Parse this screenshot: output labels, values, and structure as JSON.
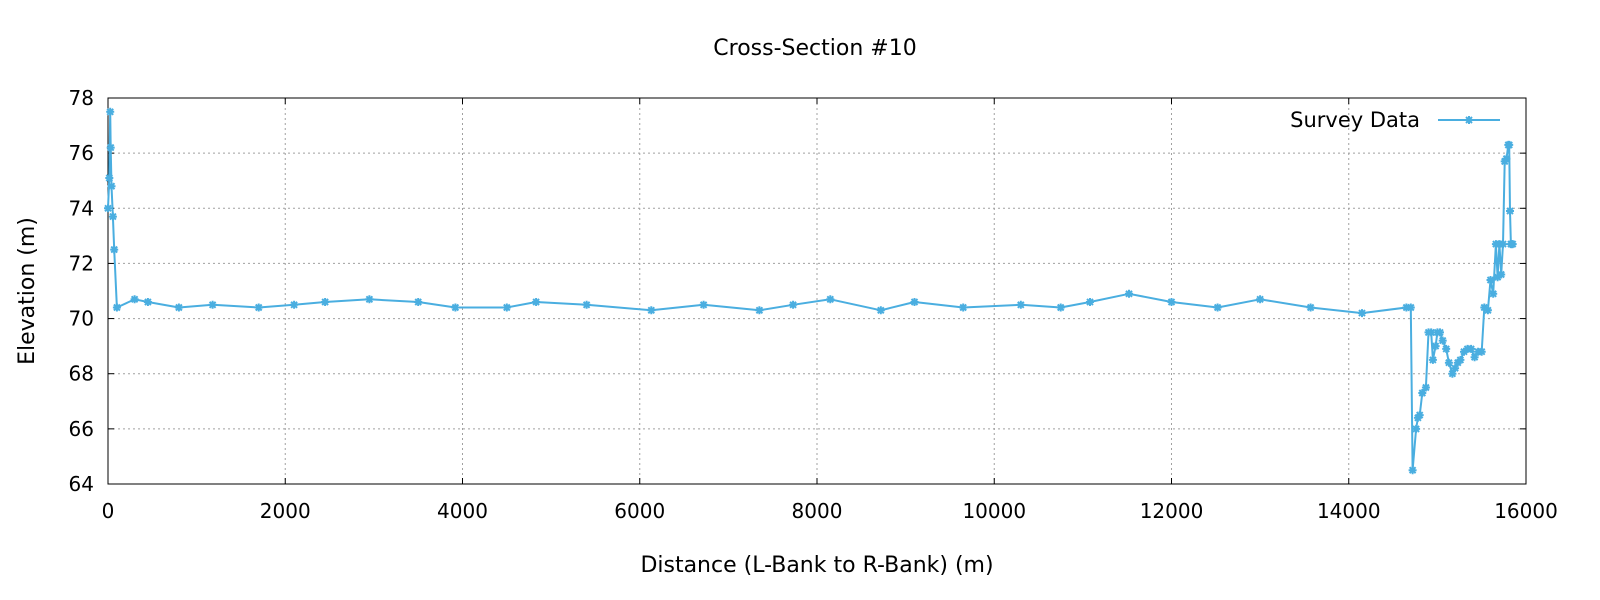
{
  "chart_data": {
    "type": "line",
    "title": "Cross-Section #10",
    "xlabel": "Distance (L-Bank to R-Bank) (m)",
    "ylabel": "Elevation (m)",
    "xlim": [
      0,
      16000
    ],
    "ylim": [
      64,
      78
    ],
    "xticks": [
      0,
      2000,
      4000,
      6000,
      8000,
      10000,
      12000,
      14000,
      16000
    ],
    "yticks": [
      64,
      66,
      68,
      70,
      72,
      74,
      76,
      78
    ],
    "grid": true,
    "legend_position": "top-right",
    "color": "#4aaee0",
    "marker": "asterisk",
    "series": [
      {
        "name": "Survey Data",
        "x": [
          0,
          15,
          25,
          30,
          40,
          55,
          70,
          100,
          300,
          450,
          800,
          1180,
          1700,
          2100,
          2450,
          2950,
          3500,
          3920,
          4500,
          4830,
          5400,
          6130,
          6720,
          7350,
          7730,
          8150,
          8720,
          9100,
          9650,
          10300,
          10750,
          11080,
          11520,
          12000,
          12520,
          13000,
          13570,
          14150,
          14650,
          14700,
          14720,
          14760,
          14780,
          14800,
          14830,
          14870,
          14900,
          14930,
          14950,
          14980,
          15000,
          15030,
          15060,
          15100,
          15130,
          15170,
          15200,
          15230,
          15260,
          15300,
          15340,
          15380,
          15420,
          15460,
          15500,
          15530,
          15570,
          15600,
          15630,
          15660,
          15680,
          15700,
          15720,
          15740,
          15760,
          15780,
          15800,
          15810,
          15820,
          15830,
          15840,
          15850
        ],
        "y": [
          74.0,
          75.1,
          77.5,
          76.2,
          74.8,
          73.7,
          72.5,
          70.4,
          70.7,
          70.6,
          70.4,
          70.5,
          70.4,
          70.5,
          70.6,
          70.7,
          70.6,
          70.4,
          70.4,
          70.6,
          70.5,
          70.3,
          70.5,
          70.3,
          70.5,
          70.7,
          70.3,
          70.6,
          70.4,
          70.5,
          70.4,
          70.6,
          70.9,
          70.6,
          70.4,
          70.7,
          70.4,
          70.2,
          70.4,
          70.4,
          64.5,
          66.0,
          66.4,
          66.5,
          67.3,
          67.5,
          69.5,
          69.5,
          68.5,
          69.0,
          69.5,
          69.5,
          69.2,
          68.9,
          68.4,
          68.0,
          68.2,
          68.4,
          68.5,
          68.8,
          68.9,
          68.9,
          68.6,
          68.8,
          68.8,
          70.4,
          70.3,
          71.4,
          70.9,
          72.7,
          71.5,
          72.7,
          71.6,
          72.7,
          75.7,
          75.8,
          76.3,
          76.3,
          73.9,
          72.7,
          72.7,
          72.7
        ]
      }
    ]
  }
}
